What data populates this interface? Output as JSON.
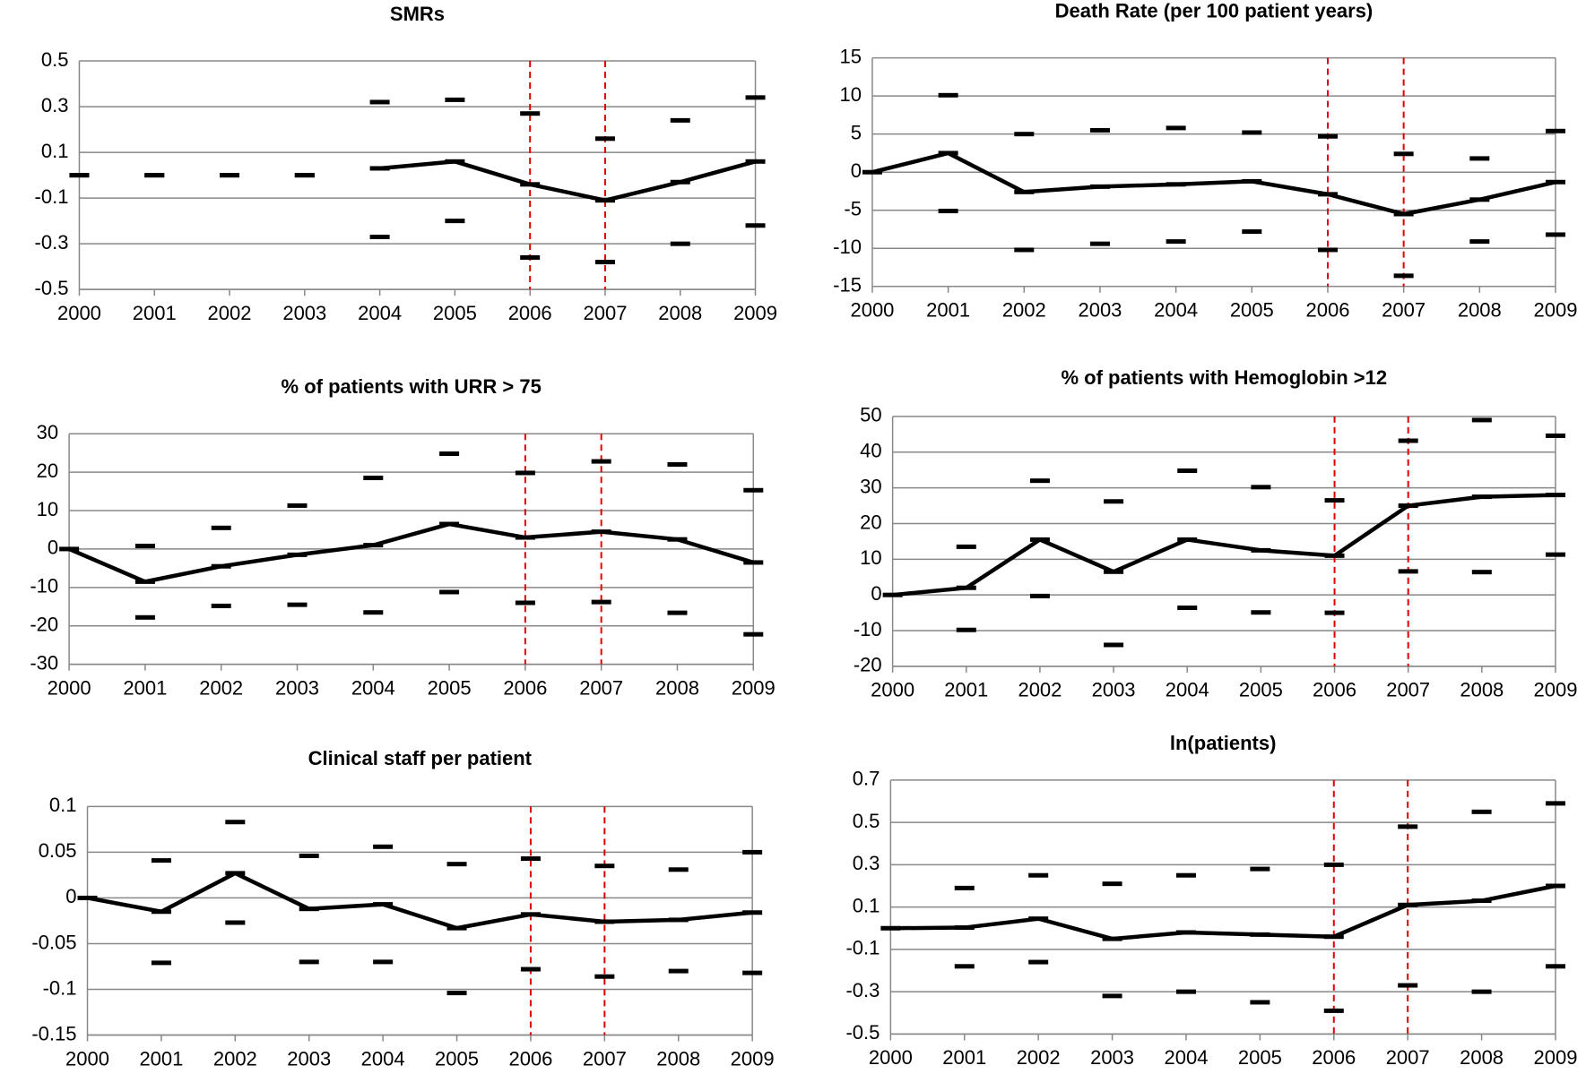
{
  "chart_data": [
    {
      "type": "line",
      "title": "SMRs",
      "categories": [
        "2000",
        "2001",
        "2002",
        "2003",
        "2004",
        "2005",
        "2006",
        "2007",
        "2008",
        "2009"
      ],
      "values": [
        null,
        null,
        null,
        null,
        0.03,
        0.06,
        -0.04,
        -0.11,
        -0.03,
        0.06
      ],
      "ci_upper": [
        0,
        0,
        0,
        0,
        0.32,
        0.33,
        0.27,
        0.16,
        0.24,
        0.34
      ],
      "ci_lower": [
        0,
        0,
        0,
        0,
        -0.27,
        -0.2,
        -0.36,
        -0.38,
        -0.3,
        -0.22
      ],
      "color": "#000000",
      "vlines": [
        "2006",
        "2007"
      ],
      "vline_color": "#e00000",
      "ylim": [
        -0.5,
        0.5
      ],
      "yticks": [
        -0.5,
        -0.3,
        -0.1,
        0.1,
        0.3,
        0.5
      ],
      "grid": true
    },
    {
      "type": "line",
      "title": "Death Rate (per 100 patient years)",
      "categories": [
        "2000",
        "2001",
        "2002",
        "2003",
        "2004",
        "2005",
        "2006",
        "2007",
        "2008",
        "2009"
      ],
      "values": [
        0,
        2.5,
        -2.6,
        -1.9,
        -1.6,
        -1.2,
        -2.9,
        -5.5,
        -3.6,
        -1.3
      ],
      "ci_upper": [
        null,
        10.1,
        5,
        5.5,
        5.8,
        5.2,
        4.7,
        2.4,
        1.8,
        5.4
      ],
      "ci_lower": [
        null,
        -5.1,
        -10.2,
        -9.4,
        -9.1,
        -7.8,
        -10.2,
        -13.6,
        -9.1,
        -8.2
      ],
      "color": "#000000",
      "vlines": [
        "2006",
        "2007"
      ],
      "vline_color": "#e00000",
      "ylim": [
        -15,
        15
      ],
      "yticks": [
        -15,
        -10,
        -5,
        0,
        5,
        10,
        15
      ],
      "grid": true
    },
    {
      "type": "line",
      "title": "% of patients with URR > 75",
      "categories": [
        "2000",
        "2001",
        "2002",
        "2003",
        "2004",
        "2005",
        "2006",
        "2007",
        "2008",
        "2009"
      ],
      "values": [
        0,
        -8.5,
        -4.5,
        -1.5,
        1,
        6.5,
        3,
        4.5,
        2.5,
        -3.5
      ],
      "ci_upper": [
        null,
        0.8,
        5.5,
        11.3,
        18.5,
        24.8,
        19.8,
        22.8,
        22,
        15.3
      ],
      "ci_lower": [
        null,
        -17.8,
        -14.8,
        -14.5,
        -16.5,
        -11.2,
        -14,
        -13.8,
        -16.6,
        -22.2
      ],
      "color": "#000000",
      "vlines": [
        "2006",
        "2007"
      ],
      "vline_color": "#e00000",
      "ylim": [
        -30,
        30
      ],
      "yticks": [
        -30,
        -20,
        -10,
        0,
        10,
        20,
        30
      ],
      "grid": true
    },
    {
      "type": "line",
      "title": "% of patients with Hemoglobin >12",
      "categories": [
        "2000",
        "2001",
        "2002",
        "2003",
        "2004",
        "2005",
        "2006",
        "2007",
        "2008",
        "2009"
      ],
      "values": [
        0,
        2,
        15.5,
        6.5,
        15.5,
        12.5,
        11,
        25,
        27.5,
        28
      ],
      "ci_upper": [
        null,
        13.5,
        32,
        26.2,
        34.8,
        30.2,
        26.5,
        43.2,
        49,
        44.6
      ],
      "ci_lower": [
        null,
        -9.8,
        -0.3,
        -14,
        -3.6,
        -4.9,
        -5,
        6.6,
        6.4,
        11.3
      ],
      "color": "#000000",
      "vlines": [
        "2006",
        "2007"
      ],
      "vline_color": "#e00000",
      "ylim": [
        -20,
        50
      ],
      "yticks": [
        -20,
        -10,
        0,
        10,
        20,
        30,
        40,
        50
      ],
      "grid": true
    },
    {
      "type": "line",
      "title": "Clinical staff per patient",
      "categories": [
        "2000",
        "2001",
        "2002",
        "2003",
        "2004",
        "2005",
        "2006",
        "2007",
        "2008",
        "2009"
      ],
      "values": [
        0,
        -0.015,
        0.027,
        -0.012,
        -0.007,
        -0.033,
        -0.018,
        -0.026,
        -0.024,
        -0.016
      ],
      "ci_upper": [
        null,
        0.041,
        0.083,
        0.046,
        0.056,
        0.037,
        0.043,
        0.035,
        0.031,
        0.05
      ],
      "ci_lower": [
        null,
        -0.071,
        -0.027,
        -0.07,
        -0.07,
        -0.104,
        -0.078,
        -0.086,
        -0.08,
        -0.082
      ],
      "color": "#000000",
      "vlines": [
        "2006",
        "2007"
      ],
      "vline_color": "#e00000",
      "ylim": [
        -0.15,
        0.1
      ],
      "yticks": [
        -0.15,
        -0.1,
        -0.05,
        0,
        0.05,
        0.1
      ],
      "grid": true
    },
    {
      "type": "line",
      "title": "ln(patients)",
      "categories": [
        "2000",
        "2001",
        "2002",
        "2003",
        "2004",
        "2005",
        "2006",
        "2007",
        "2008",
        "2009"
      ],
      "values": [
        0,
        0.003,
        0.045,
        -0.05,
        -0.02,
        -0.03,
        -0.04,
        0.11,
        0.13,
        0.2
      ],
      "ci_upper": [
        null,
        0.19,
        0.25,
        0.21,
        0.25,
        0.28,
        0.3,
        0.48,
        0.55,
        0.59
      ],
      "ci_lower": [
        null,
        -0.18,
        -0.16,
        -0.32,
        -0.3,
        -0.35,
        -0.39,
        -0.27,
        -0.3,
        -0.18
      ],
      "color": "#000000",
      "vlines": [
        "2006",
        "2007"
      ],
      "vline_color": "#e00000",
      "ylim": [
        -0.5,
        0.7
      ],
      "yticks": [
        -0.5,
        -0.3,
        -0.1,
        0.1,
        0.3,
        0.5,
        0.7
      ],
      "grid": true
    }
  ]
}
